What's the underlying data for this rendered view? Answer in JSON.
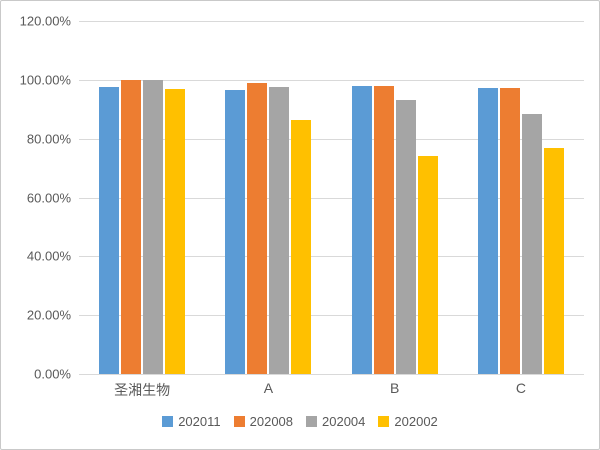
{
  "chart_data": {
    "type": "bar",
    "title": "",
    "categories": [
      "圣湘生物",
      "A",
      "B",
      "C"
    ],
    "series": [
      {
        "name": "202011",
        "color": "#5B9BD5",
        "values": [
          97.5,
          96.5,
          98.0,
          97.3
        ]
      },
      {
        "name": "202008",
        "color": "#ED7D31",
        "values": [
          100.0,
          99.0,
          98.0,
          97.3
        ]
      },
      {
        "name": "202004",
        "color": "#A5A5A5",
        "values": [
          100.0,
          97.5,
          93.0,
          88.5
        ]
      },
      {
        "name": "202002",
        "color": "#FFC000",
        "values": [
          97.0,
          86.5,
          74.0,
          77.0
        ]
      }
    ],
    "xlabel": "",
    "ylabel": "",
    "ylim": [
      0,
      120
    ],
    "ytick_step": 20,
    "ytick_labels": [
      "0.00%",
      "20.00%",
      "40.00%",
      "60.00%",
      "80.00%",
      "100.00%",
      "120.00%"
    ],
    "grid": true,
    "legend_position": "bottom"
  },
  "colors": {
    "background": "#FFFFFF",
    "border": "#C9C9C9",
    "gridline": "#D9D9D9",
    "text": "#595959"
  }
}
